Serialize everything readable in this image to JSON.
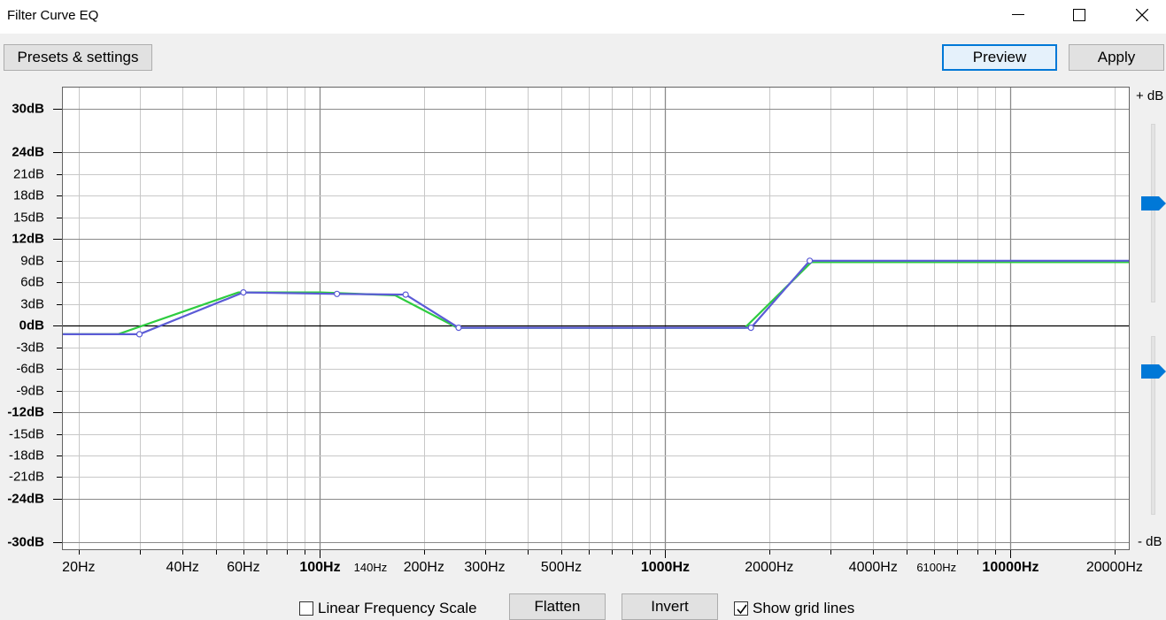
{
  "window": {
    "title": "Filter Curve EQ"
  },
  "toolbar": {
    "presets_label": "Presets & settings",
    "preview_label": "Preview",
    "apply_label": "Apply"
  },
  "gain_slider": {
    "top_label": "+ dB",
    "bottom_label": "- dB",
    "max_position_fraction": 0.45,
    "min_position_fraction": 0.2
  },
  "chart_data": {
    "type": "line",
    "xscale": "log",
    "xlim": [
      18,
      22000
    ],
    "ylim": [
      -31,
      33
    ],
    "y_ticks": [
      {
        "v": 30,
        "label": "30dB",
        "bold": true
      },
      {
        "v": 24,
        "label": "24dB",
        "bold": true
      },
      {
        "v": 21,
        "label": "21dB",
        "bold": false
      },
      {
        "v": 18,
        "label": "18dB",
        "bold": false
      },
      {
        "v": 15,
        "label": "15dB",
        "bold": false
      },
      {
        "v": 12,
        "label": "12dB",
        "bold": true
      },
      {
        "v": 9,
        "label": "9dB",
        "bold": false
      },
      {
        "v": 6,
        "label": "6dB",
        "bold": false
      },
      {
        "v": 3,
        "label": "3dB",
        "bold": false
      },
      {
        "v": 0,
        "label": "0dB",
        "bold": true
      },
      {
        "v": -3,
        "label": "-3dB",
        "bold": false
      },
      {
        "v": -6,
        "label": "-6dB",
        "bold": false
      },
      {
        "v": -9,
        "label": "-9dB",
        "bold": false
      },
      {
        "v": -12,
        "label": "-12dB",
        "bold": true
      },
      {
        "v": -15,
        "label": "-15dB",
        "bold": false
      },
      {
        "v": -18,
        "label": "-18dB",
        "bold": false
      },
      {
        "v": -21,
        "label": "-21dB",
        "bold": false
      },
      {
        "v": -24,
        "label": "-24dB",
        "bold": true
      },
      {
        "v": -30,
        "label": "-30dB",
        "bold": true
      }
    ],
    "x_ticks": [
      {
        "v": 20,
        "label": "20Hz",
        "style": "normal"
      },
      {
        "v": 40,
        "label": "40Hz",
        "style": "normal"
      },
      {
        "v": 60,
        "label": "60Hz",
        "style": "normal"
      },
      {
        "v": 100,
        "label": "100Hz",
        "style": "bold"
      },
      {
        "v": 140,
        "label": "140Hz",
        "style": "small"
      },
      {
        "v": 200,
        "label": "200Hz",
        "style": "normal"
      },
      {
        "v": 300,
        "label": "300Hz",
        "style": "normal"
      },
      {
        "v": 500,
        "label": "500Hz",
        "style": "normal"
      },
      {
        "v": 1000,
        "label": "1000Hz",
        "style": "bold"
      },
      {
        "v": 2000,
        "label": "2000Hz",
        "style": "normal"
      },
      {
        "v": 4000,
        "label": "4000Hz",
        "style": "normal"
      },
      {
        "v": 6100,
        "label": "6100Hz",
        "style": "small"
      },
      {
        "v": 10000,
        "label": "10000Hz",
        "style": "bold"
      },
      {
        "v": 20000,
        "label": "20000Hz",
        "style": "normal"
      }
    ],
    "grid": true,
    "series": [
      {
        "color": "#2ecc40",
        "points": [
          [
            18,
            -1.2
          ],
          [
            26,
            -1.2
          ],
          [
            58,
            4.6
          ],
          [
            100,
            4.6
          ],
          [
            165,
            4.2
          ],
          [
            250,
            -0.3
          ],
          [
            1700,
            -0.3
          ],
          [
            2650,
            8.8
          ],
          [
            22000,
            8.8
          ]
        ]
      },
      {
        "color": "#5b5bd6",
        "points": [
          [
            18,
            -1.2
          ],
          [
            30,
            -1.2
          ],
          [
            60,
            4.6
          ],
          [
            112,
            4.4
          ],
          [
            177,
            4.3
          ],
          [
            252,
            -0.3
          ],
          [
            1770,
            -0.3
          ],
          [
            2620,
            9
          ],
          [
            22000,
            9
          ]
        ]
      }
    ],
    "control_points": [
      [
        30,
        -1.2
      ],
      [
        60,
        4.6
      ],
      [
        112,
        4.4
      ],
      [
        177,
        4.3
      ],
      [
        252,
        -0.3
      ],
      [
        1770,
        -0.3
      ],
      [
        2620,
        9
      ]
    ]
  },
  "footer": {
    "linear_label": "Linear Frequency Scale",
    "linear_checked": false,
    "flatten_label": "Flatten",
    "invert_label": "Invert",
    "grid_label": "Show grid lines",
    "grid_checked": true
  }
}
